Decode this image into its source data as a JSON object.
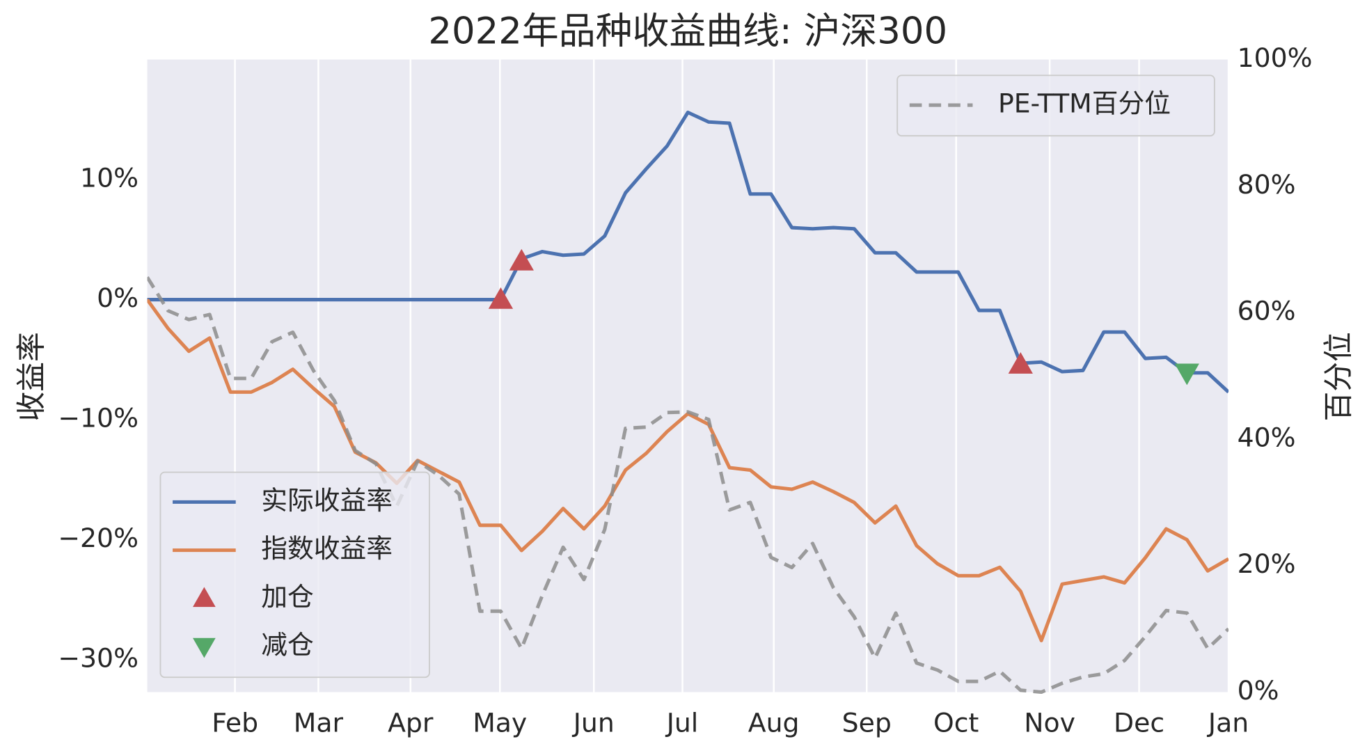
{
  "chart_data": {
    "type": "line",
    "title": "2022年品种收益曲线: 沪深300",
    "ylabel": "收益率",
    "y2label": "百分位",
    "x": [
      0,
      1,
      2,
      3,
      4,
      5,
      6,
      7,
      8,
      9,
      10,
      11,
      12,
      13,
      14,
      15,
      16,
      17,
      18,
      19,
      20,
      21,
      22,
      23,
      24,
      25,
      26,
      27,
      28,
      29,
      30,
      31,
      32,
      33,
      34,
      35,
      36,
      37,
      38,
      39,
      40,
      41,
      42,
      43,
      44,
      45,
      46,
      47,
      48,
      49,
      50,
      51,
      52
    ],
    "xlim": [
      0,
      52
    ],
    "xticks": [
      {
        "value": 4.22,
        "label": "Feb"
      },
      {
        "value": 8.23,
        "label": "Mar"
      },
      {
        "value": 12.66,
        "label": "Apr"
      },
      {
        "value": 16.96,
        "label": "May"
      },
      {
        "value": 21.48,
        "label": "Jun"
      },
      {
        "value": 25.74,
        "label": "Jul"
      },
      {
        "value": 30.13,
        "label": "Aug"
      },
      {
        "value": 34.6,
        "label": "Sep"
      },
      {
        "value": 38.9,
        "label": "Oct"
      },
      {
        "value": 43.4,
        "label": "Nov"
      },
      {
        "value": 47.7,
        "label": "Dec"
      },
      {
        "value": 52,
        "label": "Jan"
      }
    ],
    "ylim": [
      -32.7,
      20.0
    ],
    "yticks": [
      {
        "value": -30,
        "label": "−30%"
      },
      {
        "value": -20,
        "label": "−20%"
      },
      {
        "value": -10,
        "label": "−10%"
      },
      {
        "value": 0,
        "label": "0%"
      },
      {
        "value": 10,
        "label": "10%"
      }
    ],
    "y2lim": [
      0,
      100
    ],
    "y2ticks": [
      {
        "value": 0,
        "label": "0%"
      },
      {
        "value": 20,
        "label": "20%"
      },
      {
        "value": 40,
        "label": "40%"
      },
      {
        "value": 60,
        "label": "60%"
      },
      {
        "value": 80,
        "label": "80%"
      },
      {
        "value": 100,
        "label": "100%"
      }
    ],
    "grid": "x",
    "legend_loc": "lower left",
    "legend2_loc": "upper right",
    "series": [
      {
        "name": "实际收益率",
        "color": "#4c72b0",
        "values": [
          0,
          0,
          0,
          0,
          0,
          0,
          0,
          0,
          0,
          0,
          0,
          0,
          0,
          0,
          0,
          0,
          0,
          0,
          3.4,
          4.0,
          3.7,
          3.8,
          5.3,
          8.9,
          10.9,
          12.8,
          15.6,
          14.8,
          14.7,
          8.8,
          8.8,
          6.0,
          5.9,
          6.0,
          5.9,
          3.9,
          3.9,
          2.3,
          2.3,
          2.3,
          -0.9,
          -0.9,
          -5.3,
          -5.2,
          -6.0,
          -5.9,
          -2.7,
          -2.7,
          -4.9,
          -4.8,
          -6.1,
          -6.1,
          -7.7
        ]
      },
      {
        "name": "指数收益率",
        "color": "#dd8452",
        "values": [
          0,
          -2.4,
          -4.3,
          -3.2,
          -7.7,
          -7.7,
          -6.9,
          -5.8,
          -7.4,
          -8.9,
          -12.7,
          -13.6,
          -15.3,
          -13.4,
          -14.3,
          -15.2,
          -18.8,
          -18.8,
          -20.9,
          -19.3,
          -17.4,
          -19.1,
          -17.2,
          -14.2,
          -12.8,
          -11.0,
          -9.5,
          -10.4,
          -14.0,
          -14.2,
          -15.6,
          -15.8,
          -15.2,
          -16.0,
          -16.9,
          -18.6,
          -17.2,
          -20.5,
          -22.0,
          -23.0,
          -23.0,
          -22.3,
          -24.3,
          -28.4,
          -23.7,
          -23.4,
          -23.1,
          -23.6,
          -21.5,
          -19.1,
          -20.0,
          -22.6,
          -21.6
        ]
      },
      {
        "name": "加仓",
        "color": "#c44e52",
        "marker": "^",
        "x": [
          17,
          18,
          42
        ],
        "values": [
          0,
          3.2,
          -5.4
        ]
      },
      {
        "name": "减仓",
        "color": "#55a868",
        "marker": "v",
        "x": [
          50
        ],
        "values": [
          -6.1
        ]
      },
      {
        "name": "PE-TTM百分位",
        "color": "#8c8c8c",
        "axis": "y2",
        "linestyle": "--",
        "values": [
          65.6,
          60.3,
          58.9,
          59.7,
          49.6,
          49.6,
          55.4,
          56.9,
          50.8,
          46.1,
          38.2,
          36.1,
          29.4,
          36.5,
          34.3,
          31.3,
          12.8,
          12.8,
          6.9,
          15.3,
          22.9,
          17.8,
          25.7,
          41.7,
          41.9,
          44.2,
          44.3,
          43.1,
          28.8,
          30.0,
          21.3,
          19.7,
          23.5,
          16.5,
          11.9,
          5.4,
          12.5,
          4.6,
          3.5,
          1.7,
          1.7,
          3.3,
          0.3,
          0,
          1.4,
          2.4,
          2.9,
          5.0,
          8.8,
          12.9,
          12.5,
          6.9,
          10.0
        ]
      }
    ]
  }
}
